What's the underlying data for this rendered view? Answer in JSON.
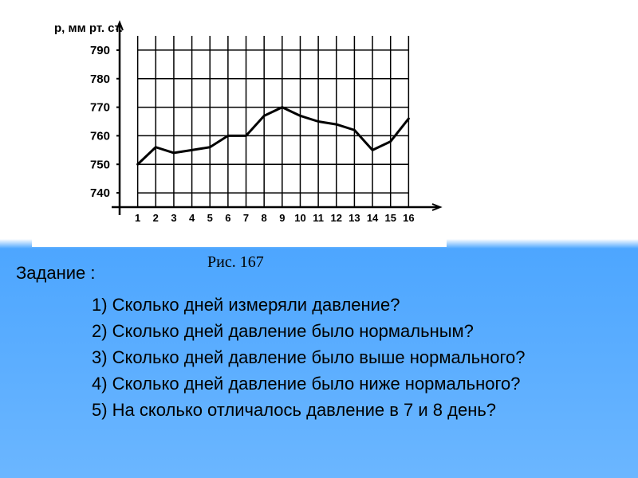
{
  "chart": {
    "type": "line",
    "y_label": "р, мм рт. ст.",
    "y_ticks": [
      740,
      750,
      760,
      770,
      780,
      790
    ],
    "x_ticks": [
      1,
      2,
      3,
      4,
      5,
      6,
      7,
      8,
      9,
      10,
      11,
      12,
      13,
      14,
      15,
      16
    ],
    "ylim": [
      735,
      795
    ],
    "xlim": [
      0,
      17
    ],
    "data_points": [
      {
        "x": 1,
        "y": 750
      },
      {
        "x": 2,
        "y": 756
      },
      {
        "x": 3,
        "y": 754
      },
      {
        "x": 4,
        "y": 755
      },
      {
        "x": 5,
        "y": 756
      },
      {
        "x": 6,
        "y": 760
      },
      {
        "x": 7,
        "y": 760
      },
      {
        "x": 8,
        "y": 767
      },
      {
        "x": 9,
        "y": 770
      },
      {
        "x": 10,
        "y": 767
      },
      {
        "x": 11,
        "y": 765
      },
      {
        "x": 12,
        "y": 764
      },
      {
        "x": 13,
        "y": 762
      },
      {
        "x": 14,
        "y": 755
      },
      {
        "x": 15,
        "y": 758
      },
      {
        "x": 16,
        "y": 766
      }
    ],
    "line_color": "#000000",
    "line_width": 3,
    "grid_color": "#000000",
    "grid_width": 1.5,
    "background_color": "#ffffff",
    "text_color": "#000000",
    "axis_font_size": 15,
    "label_font_size": 15
  },
  "figure_caption": "Рис. 167",
  "task": {
    "heading": "Задание :",
    "questions": [
      "1) Сколько дней измеряли давление?",
      "2) Сколько дней давление было нормальным?",
      "3) Сколько дней давление было выше нормального?",
      "4) Сколько дней давление было ниже нормального?",
      "5) На сколько отличалось давление в 7 и 8 день?"
    ]
  }
}
